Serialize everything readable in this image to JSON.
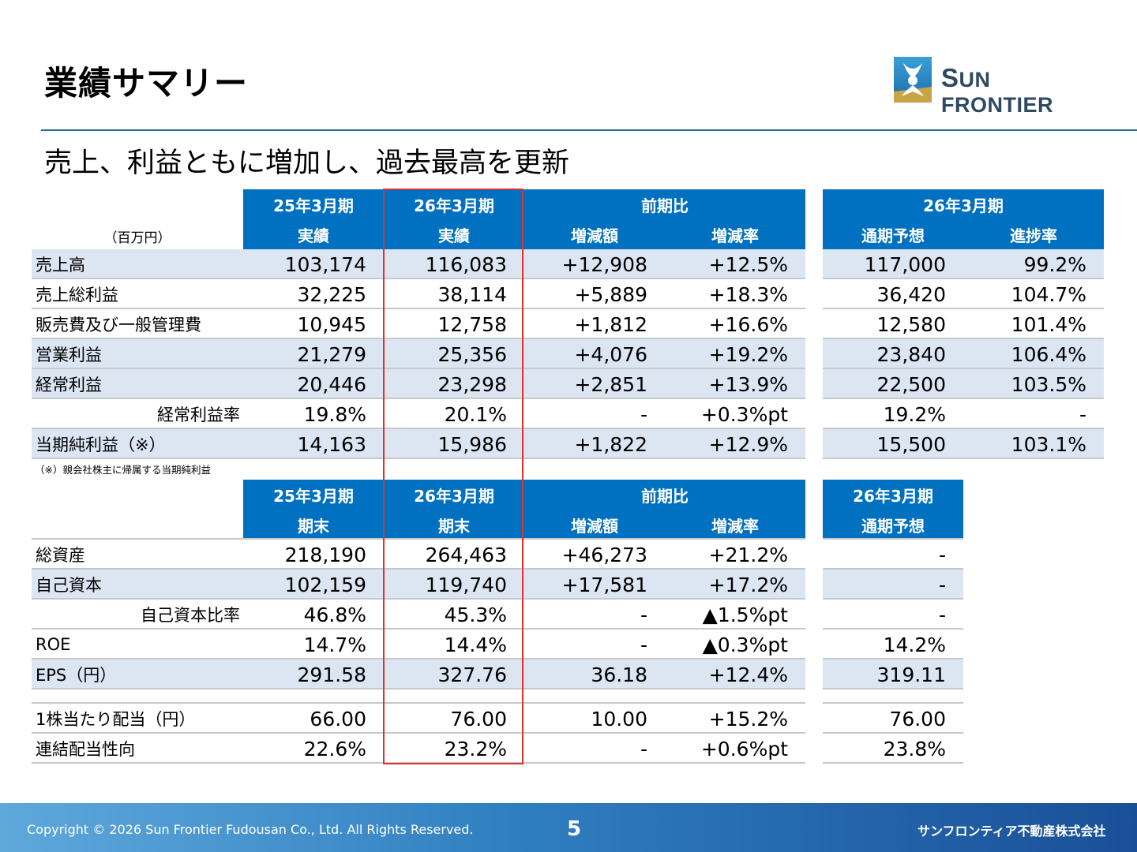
{
  "page": {
    "title": "業績サマリー",
    "subtitle": "売上、利益ともに増加し、過去最高を更新",
    "logo_text_a": "S",
    "logo_text_b": "UN FRONTIER",
    "unit": "（百万円）",
    "note": "（※）親会社株主に帰属する当期純利益",
    "copyright": "Copyright © 2026 Sun Frontier Fudousan Co., Ltd. All Rights Reserved.",
    "page_number": "5",
    "company": "サンフロンティア不動産株式会社"
  },
  "colors": {
    "header": "#0070c0",
    "band": "#dce6f2",
    "highlight": "#e03030",
    "rule": "#1f6c97"
  },
  "table1": {
    "headers": {
      "fy25": "25年3月期",
      "fy25_sub": "実績",
      "fy26": "26年3月期",
      "fy26_sub": "実績",
      "yoy": "前期比",
      "yoy_diff": "増減額",
      "yoy_rate": "増減率",
      "plan": "26年3月期",
      "plan_forecast": "通期予想",
      "plan_progress": "進捗率"
    },
    "rows": [
      {
        "label": "売上高",
        "fy25": "103,174",
        "fy26": "116,083",
        "diff": "+12,908",
        "rate": "+12.5%",
        "forecast": "117,000",
        "progress": "99.2%"
      },
      {
        "label": "売上総利益",
        "fy25": "32,225",
        "fy26": "38,114",
        "diff": "+5,889",
        "rate": "+18.3%",
        "forecast": "36,420",
        "progress": "104.7%"
      },
      {
        "label": "販売費及び一般管理費",
        "fy25": "10,945",
        "fy26": "12,758",
        "diff": "+1,812",
        "rate": "+16.6%",
        "forecast": "12,580",
        "progress": "101.4%"
      },
      {
        "label": "営業利益",
        "fy25": "21,279",
        "fy26": "25,356",
        "diff": "+4,076",
        "rate": "+19.2%",
        "forecast": "23,840",
        "progress": "106.4%"
      },
      {
        "label": "経常利益",
        "fy25": "20,446",
        "fy26": "23,298",
        "diff": "+2,851",
        "rate": "+13.9%",
        "forecast": "22,500",
        "progress": "103.5%"
      },
      {
        "label": "経常利益率",
        "fy25": "19.8%",
        "fy26": "20.1%",
        "diff": "-",
        "rate": "+0.3%pt",
        "forecast": "19.2%",
        "progress": "-"
      },
      {
        "label": "当期純利益（※）",
        "fy25": "14,163",
        "fy26": "15,986",
        "diff": "+1,822",
        "rate": "+12.9%",
        "forecast": "15,500",
        "progress": "103.1%"
      }
    ]
  },
  "table2": {
    "headers": {
      "fy25": "25年3月期",
      "fy25_sub": "期末",
      "fy26": "26年3月期",
      "fy26_sub": "期末",
      "yoy": "前期比",
      "yoy_diff": "増減額",
      "yoy_rate": "増減率",
      "plan": "26年3月期",
      "plan_forecast": "通期予想"
    },
    "rows": [
      {
        "label": "総資産",
        "fy25": "218,190",
        "fy26": "264,463",
        "diff": "+46,273",
        "rate": "+21.2%",
        "forecast": "-"
      },
      {
        "label": "自己資本",
        "fy25": "102,159",
        "fy26": "119,740",
        "diff": "+17,581",
        "rate": "+17.2%",
        "forecast": "-"
      },
      {
        "label": "自己資本比率",
        "fy25": "46.8%",
        "fy26": "45.3%",
        "diff": "-",
        "rate": "▲1.5%pt",
        "forecast": "-"
      },
      {
        "label": "ROE",
        "fy25": "14.7%",
        "fy26": "14.4%",
        "diff": "-",
        "rate": "▲0.3%pt",
        "forecast": "14.2%"
      },
      {
        "label": "EPS（円）",
        "fy25": "291.58",
        "fy26": "327.76",
        "diff": "36.18",
        "rate": "+12.4%",
        "forecast": "319.11"
      },
      {
        "label": "1株当たり配当（円）",
        "fy25": "66.00",
        "fy26": "76.00",
        "diff": "10.00",
        "rate": "+15.2%",
        "forecast": "76.00"
      },
      {
        "label": "連結配当性向",
        "fy25": "22.6%",
        "fy26": "23.2%",
        "diff": "-",
        "rate": "+0.6%pt",
        "forecast": "23.8%"
      }
    ]
  }
}
